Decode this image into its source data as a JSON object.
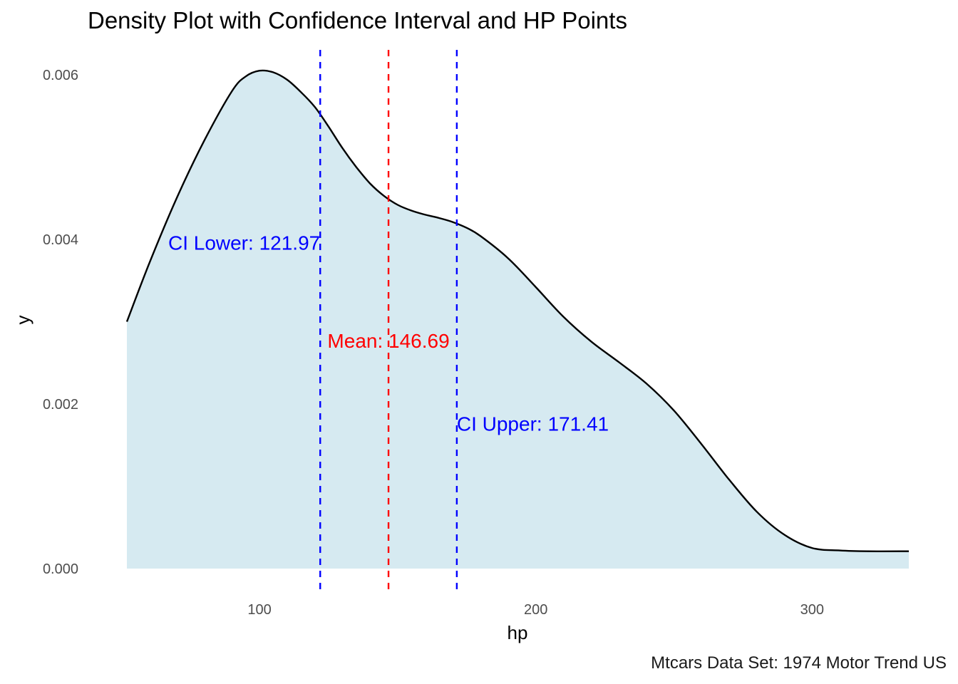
{
  "chart_data": {
    "type": "area",
    "title": "Density Plot with Confidence Interval and HP Points",
    "xlabel": "hp",
    "ylabel": "y",
    "caption": "Mtcars Data Set: 1974 Motor Trend US",
    "xlim": [
      52,
      335
    ],
    "ylim": [
      0,
      0.006
    ],
    "x_ticks": [
      100,
      200,
      300
    ],
    "y_ticks": [
      "0.000",
      "0.002",
      "0.004",
      "0.006"
    ],
    "grid": false,
    "legend": "none",
    "fill_color": "#d6eaf1",
    "line_color": "#000000",
    "density": {
      "x": [
        52,
        60,
        70,
        80,
        90,
        95,
        100,
        105,
        110,
        115,
        120,
        125,
        130,
        135,
        140,
        145,
        150,
        155,
        160,
        165,
        170,
        175,
        180,
        190,
        200,
        210,
        220,
        230,
        240,
        250,
        260,
        270,
        280,
        290,
        300,
        310,
        320,
        335
      ],
      "y": [
        0.003,
        0.0037,
        0.0045,
        0.0052,
        0.0058,
        0.00598,
        0.00605,
        0.00603,
        0.00594,
        0.00579,
        0.00561,
        0.00537,
        0.00511,
        0.00488,
        0.00468,
        0.00453,
        0.00442,
        0.00435,
        0.0043,
        0.00426,
        0.00421,
        0.00414,
        0.00404,
        0.00377,
        0.00342,
        0.00306,
        0.00276,
        0.00251,
        0.00225,
        0.00192,
        0.00151,
        0.00108,
        0.00069,
        0.00041,
        0.00025,
        0.00022,
        0.00021,
        0.00021
      ]
    },
    "vlines": [
      {
        "name": "CI Lower",
        "x": 121.97,
        "color": "#0000ff"
      },
      {
        "name": "Mean",
        "x": 146.69,
        "color": "#ff0000"
      },
      {
        "name": "CI Upper",
        "x": 171.41,
        "color": "#0000ff"
      }
    ],
    "annotations": [
      {
        "text": "CI Lower: 121.97",
        "x": 121.97,
        "y": 0.00396,
        "anchor": "end",
        "color": "#0000ff"
      },
      {
        "text": "Mean: 146.69",
        "x": 146.69,
        "y": 0.00277,
        "anchor": "middle",
        "color": "#ff0000"
      },
      {
        "text": "CI Upper: 171.41",
        "x": 171.41,
        "y": 0.00176,
        "anchor": "start",
        "color": "#0000ff"
      }
    ]
  }
}
